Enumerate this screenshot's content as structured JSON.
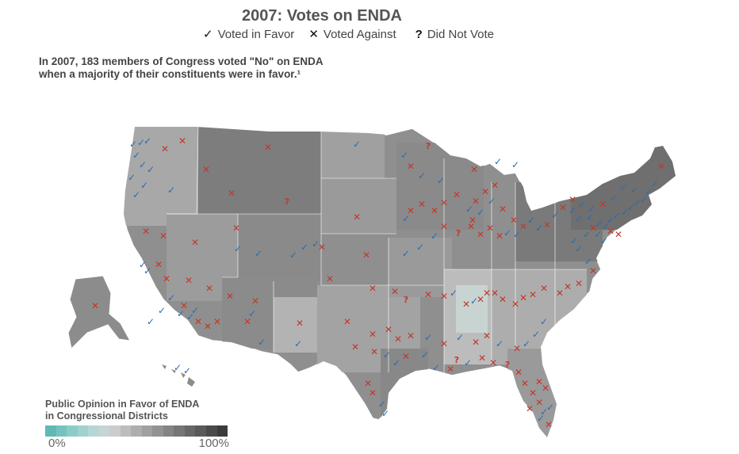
{
  "title": "2007: Votes on ENDA",
  "legend": {
    "favor": {
      "symbol": "✓",
      "label": "Voted in Favor",
      "color": "#2b6cb0"
    },
    "against": {
      "symbol": "✕",
      "label": "Voted Against",
      "color": "#c0392b"
    },
    "nv": {
      "symbol": "?",
      "label": "Did Not Vote"
    }
  },
  "subtitle": {
    "line1": "In 2007, 183 members of Congress voted \"No\" on ENDA",
    "line2": "when a majority of their constituents were in favor.¹"
  },
  "opinion_scale": {
    "title_line1": "Public Opinion in Favor of ENDA",
    "title_line2": "in Congressional Districts",
    "min_label": "0%",
    "max_label": "100%",
    "colors": [
      "#5fb9b5",
      "#76c2be",
      "#8cccc8",
      "#a2d0ce",
      "#b6d6d5",
      "#c6d4d4",
      "#cccccc",
      "#bdbdbd",
      "#aeaeae",
      "#a0a0a0",
      "#929292",
      "#848484",
      "#767676",
      "#676767",
      "#5a5a5a",
      "#4a4a4a",
      "#3c3c3c"
    ]
  },
  "colors": {
    "favor": "#2b6cb0",
    "against": "#c0392b",
    "nv_favor": "#4a7fc0",
    "nv_against": "#c0392b"
  }
}
